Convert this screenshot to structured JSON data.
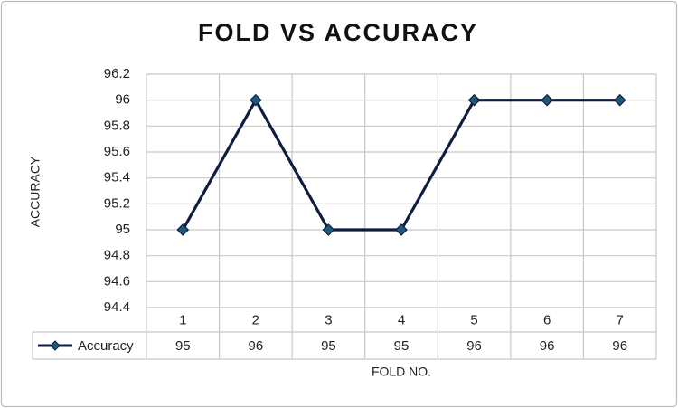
{
  "chart_data": {
    "type": "line",
    "title": "FOLD VS ACCURACY",
    "x_label": "FOLD NO.",
    "y_label": "ACCURACY",
    "categories": [
      "1",
      "2",
      "3",
      "4",
      "5",
      "6",
      "7"
    ],
    "series": [
      {
        "name": "Accuracy",
        "color": "#0e1d3f",
        "marker_color": "#1f5878",
        "values": [
          95,
          96,
          95,
          95,
          96,
          96,
          96
        ]
      }
    ],
    "ylim": [
      94.4,
      96.2
    ],
    "yticks": [
      94.4,
      94.6,
      94.8,
      95,
      95.2,
      95.4,
      95.6,
      95.8,
      96,
      96.2
    ],
    "grid": true,
    "data_table": true
  }
}
